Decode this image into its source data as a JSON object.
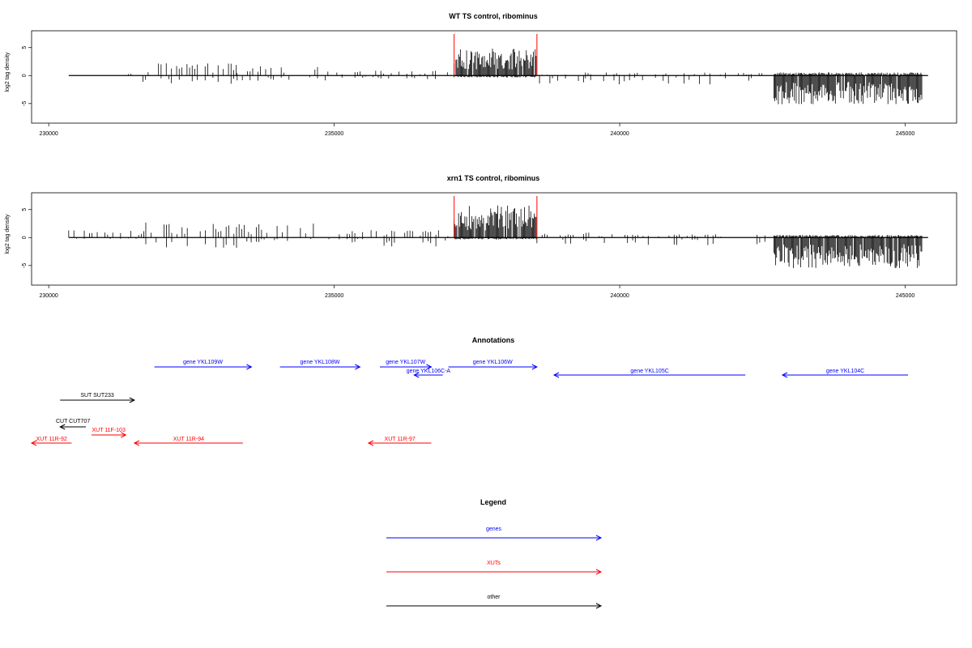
{
  "chart_data": [
    {
      "type": "bar",
      "title": "WT TS control, ribominus",
      "ylabel": "log2 tag density",
      "xlim": [
        229700,
        245900
      ],
      "ylim": [
        -8.5,
        8
      ],
      "xticks": [
        230000,
        235000,
        240000,
        245000
      ],
      "yticks": [
        -5,
        0,
        5
      ],
      "baseline": [
        230350,
        245400
      ],
      "region_markers": [
        237100,
        238550
      ],
      "segments": [
        {
          "x": [
            231350,
            231450
          ],
          "pos": 0.6,
          "neg": 0
        },
        {
          "x": [
            231650,
            233300
          ],
          "pos": 2.0,
          "neg": 1.3
        },
        {
          "x": [
            233300,
            235000
          ],
          "pos": 1.6,
          "neg": 0.8
        },
        {
          "x": [
            235000,
            236800
          ],
          "pos": 0.8,
          "neg": 0.6
        },
        {
          "x": [
            236800,
            237100
          ],
          "pos": 1.6,
          "neg": 0
        },
        {
          "x": [
            237100,
            238550
          ],
          "pos": 4.2,
          "neg": 0.3
        },
        {
          "x": [
            238550,
            239400
          ],
          "pos": 0.2,
          "neg": 1.5
        },
        {
          "x": [
            239400,
            242500
          ],
          "pos": 0.5,
          "neg": 1.4
        },
        {
          "x": [
            242700,
            245300
          ],
          "pos": 0.5,
          "neg": 4.5
        }
      ]
    },
    {
      "type": "bar",
      "title": "xrn1 TS control, ribominus",
      "ylabel": "log2 tag density",
      "xlim": [
        229700,
        245900
      ],
      "ylim": [
        -8.5,
        8
      ],
      "xticks": [
        230000,
        235000,
        240000,
        245000
      ],
      "yticks": [
        -5,
        0,
        5
      ],
      "baseline": [
        230350,
        245400
      ],
      "region_markers": [
        237100,
        238550
      ],
      "segments": [
        {
          "x": [
            230350,
            231700
          ],
          "pos": 1.2,
          "neg": 0.2
        },
        {
          "x": [
            231700,
            233500
          ],
          "pos": 2.4,
          "neg": 1.6
        },
        {
          "x": [
            233500,
            235600
          ],
          "pos": 2.2,
          "neg": 0.8
        },
        {
          "x": [
            235600,
            236900
          ],
          "pos": 1.2,
          "neg": 1.7
        },
        {
          "x": [
            236900,
            237100
          ],
          "pos": 0.8,
          "neg": 0.6
        },
        {
          "x": [
            237100,
            238550
          ],
          "pos": 5.0,
          "neg": 0.3
        },
        {
          "x": [
            238550,
            240000
          ],
          "pos": 0.8,
          "neg": 1.2
        },
        {
          "x": [
            240000,
            242600
          ],
          "pos": 0.5,
          "neg": 1.2
        },
        {
          "x": [
            242700,
            245300
          ],
          "pos": 0.4,
          "neg": 4.8
        }
      ]
    }
  ],
  "annotations": {
    "title": "Annotations",
    "features": [
      {
        "label": "gene YKL109W",
        "x": [
          231850,
          233550
        ],
        "strand": "+",
        "row": 0,
        "category": "genes"
      },
      {
        "label": "gene YKL108W",
        "x": [
          234050,
          235450
        ],
        "strand": "+",
        "row": 0,
        "category": "genes"
      },
      {
        "label": "gene YKL107W",
        "x": [
          235800,
          236700
        ],
        "strand": "+",
        "row": 0,
        "category": "genes"
      },
      {
        "label": "gene YKL106C-A",
        "x": [
          236400,
          236900
        ],
        "strand": "-",
        "row": 1,
        "category": "genes"
      },
      {
        "label": "gene YKL106W",
        "x": [
          237000,
          238550
        ],
        "strand": "+",
        "row": 0,
        "category": "genes"
      },
      {
        "label": "gene YKL105C",
        "x": [
          238850,
          242200
        ],
        "strand": "-",
        "row": 2,
        "category": "genes"
      },
      {
        "label": "gene YKL104C",
        "x": [
          242850,
          245050
        ],
        "strand": "-",
        "row": 2,
        "category": "genes"
      },
      {
        "label": "SUT SUT233",
        "x": [
          230200,
          231500
        ],
        "strand": "+",
        "row": 3,
        "category": "other"
      },
      {
        "label": "CUT CUT707",
        "x": [
          230200,
          230650
        ],
        "strand": "-",
        "row": 4,
        "category": "other"
      },
      {
        "label": "XUT 11F-103",
        "x": [
          230750,
          231350
        ],
        "strand": "+",
        "row": 5,
        "category": "XUTs"
      },
      {
        "label": "XUT 11R-92",
        "x": [
          229700,
          230400
        ],
        "strand": "-",
        "row": 6,
        "category": "XUTs"
      },
      {
        "label": "XUT 11R-94",
        "x": [
          231500,
          233400
        ],
        "strand": "-",
        "row": 6,
        "category": "XUTs"
      },
      {
        "label": "XUT 11R-97",
        "x": [
          235600,
          236700
        ],
        "strand": "-",
        "row": 6,
        "category": "XUTs"
      }
    ]
  },
  "legend": {
    "title": "Legend",
    "items": [
      {
        "label": "genes",
        "color": "#0000ff"
      },
      {
        "label": "XUTs",
        "color": "#ff0000"
      },
      {
        "label": "other",
        "color": "#000000"
      }
    ]
  },
  "colors": {
    "genes": "#0000ff",
    "XUTs": "#ff0000",
    "other": "#000000",
    "marker": "#ff0000",
    "bars": "#000000"
  }
}
